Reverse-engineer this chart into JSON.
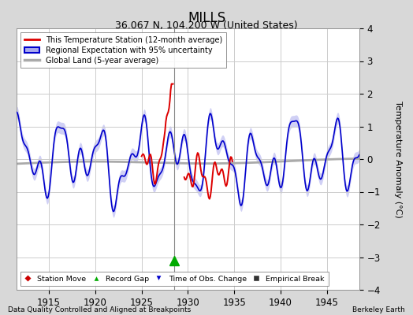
{
  "title": "MILLS",
  "subtitle": "36.067 N, 104.200 W (United States)",
  "xlabel_left": "Data Quality Controlled and Aligned at Breakpoints",
  "xlabel_right": "Berkeley Earth",
  "ylabel": "Temperature Anomaly (°C)",
  "xlim": [
    1911.5,
    1948.5
  ],
  "ylim": [
    -4,
    4
  ],
  "yticks": [
    -4,
    -3,
    -2,
    -1,
    0,
    1,
    2,
    3,
    4
  ],
  "xticks": [
    1915,
    1920,
    1925,
    1930,
    1935,
    1940,
    1945
  ],
  "bg_color": "#d8d8d8",
  "plot_bg_color": "#ffffff",
  "grid_color": "#cccccc",
  "station_color": "#dd0000",
  "regional_color": "#0000cc",
  "regional_band_color": "#aaaaee",
  "global_color": "#aaaaaa",
  "legend_labels": [
    "This Temperature Station (12-month average)",
    "Regional Expectation with 95% uncertainty",
    "Global Land (5-year average)"
  ],
  "marker_labels": [
    "Station Move",
    "Record Gap",
    "Time of Obs. Change",
    "Empirical Break"
  ],
  "marker_colors": [
    "#cc0000",
    "#00aa00",
    "#0000cc",
    "#333333"
  ],
  "vertical_line_x": 1928.5,
  "record_gap_x": 1928.5,
  "record_gap_y": -3.1
}
